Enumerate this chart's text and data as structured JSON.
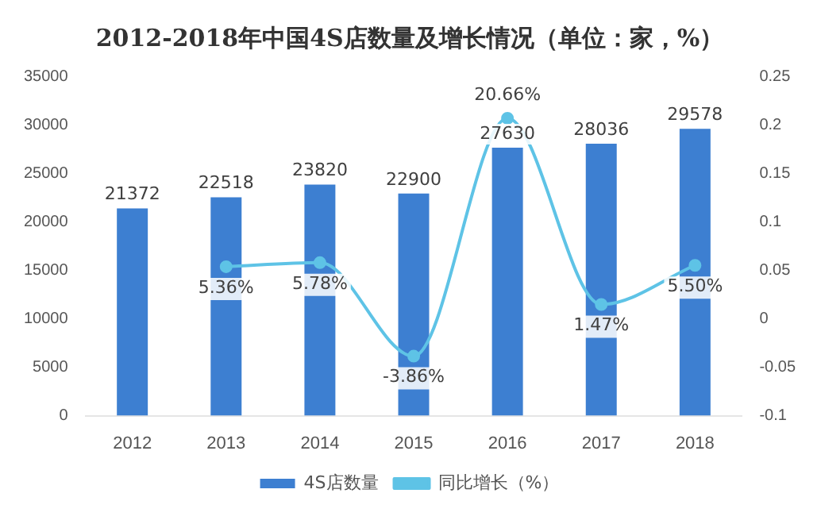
{
  "chart_data": {
    "type": "bar",
    "title": "2012-2018年中国4S店数量及增长情况（单位：家，%）",
    "categories": [
      "2012",
      "2013",
      "2014",
      "2015",
      "2016",
      "2017",
      "2018"
    ],
    "series": [
      {
        "name": "4S店数量",
        "color": "#3d7fd1",
        "values": [
          21372,
          22518,
          23820,
          22900,
          27630,
          28036,
          29578
        ],
        "value_labels": [
          "21372",
          "22518",
          "23820",
          "22900",
          "27630",
          "28036",
          "29578"
        ]
      },
      {
        "name": "同比增长（%）",
        "type": "line",
        "axis": "y2",
        "color": "#5ec3e6",
        "values": [
          null,
          0.0536,
          0.0578,
          -0.0386,
          0.2066,
          0.0147,
          0.055
        ],
        "value_labels": [
          null,
          "5.36%",
          "5.78%",
          "-3.86%",
          "20.66%",
          "1.47%",
          "5.50%"
        ]
      }
    ],
    "ylim": [
      0,
      35000
    ],
    "yticks": [
      0,
      5000,
      10000,
      15000,
      20000,
      25000,
      30000,
      35000
    ],
    "y2lim": [
      -0.1,
      0.25
    ],
    "y2ticks": [
      -0.1,
      -0.05,
      0,
      0.05,
      0.1,
      0.15,
      0.2,
      0.25
    ],
    "grid": false,
    "legend": "bottom",
    "marker": "circle",
    "line_style": "solid"
  }
}
